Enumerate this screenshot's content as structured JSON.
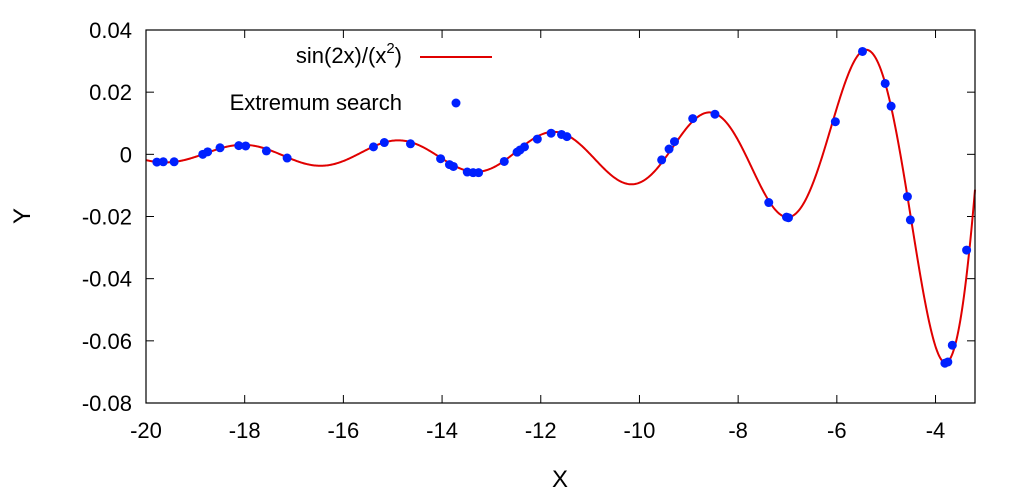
{
  "chart_data": {
    "type": "line",
    "title": "",
    "xlabel": "X",
    "ylabel": "Y",
    "xlim": [
      -20,
      -3.2
    ],
    "ylim": [
      -0.08,
      0.04
    ],
    "grid": false,
    "legend_position": "top-left",
    "x_ticks": [
      {
        "value": -20,
        "label": "-20"
      },
      {
        "value": -18,
        "label": "-18"
      },
      {
        "value": -16,
        "label": "-16"
      },
      {
        "value": -14,
        "label": "-14"
      },
      {
        "value": -12,
        "label": "-12"
      },
      {
        "value": -10,
        "label": "-10"
      },
      {
        "value": -8,
        "label": "-8"
      },
      {
        "value": -6,
        "label": "-6"
      },
      {
        "value": -4,
        "label": "-4"
      }
    ],
    "y_ticks": [
      {
        "value": 0.04,
        "label": "0.04"
      },
      {
        "value": 0.02,
        "label": "0.02"
      },
      {
        "value": 0,
        "label": "0"
      },
      {
        "value": -0.02,
        "label": "-0.02"
      },
      {
        "value": -0.04,
        "label": "-0.04"
      },
      {
        "value": -0.06,
        "label": "-0.06"
      },
      {
        "value": -0.08,
        "label": "-0.08"
      }
    ],
    "series": [
      {
        "name": "sin(2x)/(x",
        "name_superscript": "2",
        "name_suffix": ")",
        "kind": "line",
        "color": "#e00000",
        "function": "sin(2x)/(x^2)",
        "x_range": [
          -20,
          -3.2
        ]
      },
      {
        "name": "Extremum search",
        "kind": "scatter",
        "color": "#0020ff",
        "points": [
          [
            -19.78,
            -0.0025
          ],
          [
            -19.65,
            -0.0024
          ],
          [
            -19.43,
            -0.0024
          ],
          [
            -18.85,
            0.0
          ],
          [
            -18.75,
            0.0008
          ],
          [
            -18.5,
            0.0021
          ],
          [
            -18.12,
            0.0028
          ],
          [
            -17.98,
            0.0027
          ],
          [
            -17.56,
            0.0011
          ],
          [
            -17.14,
            -0.0012
          ],
          [
            -15.39,
            0.0024
          ],
          [
            -15.17,
            0.0038
          ],
          [
            -14.64,
            0.0034
          ],
          [
            -14.03,
            -0.0014
          ],
          [
            -13.85,
            -0.0033
          ],
          [
            -13.77,
            -0.0039
          ],
          [
            -13.49,
            -0.0057
          ],
          [
            -13.37,
            -0.0059
          ],
          [
            -13.26,
            -0.0059
          ],
          [
            -12.74,
            -0.0023
          ],
          [
            -12.48,
            0.0007
          ],
          [
            -12.42,
            0.0014
          ],
          [
            -12.33,
            0.0024
          ],
          [
            -12.07,
            0.0049
          ],
          [
            -11.79,
            0.0068
          ],
          [
            -11.58,
            0.0064
          ],
          [
            -11.47,
            0.0057
          ],
          [
            -9.55,
            -0.0018
          ],
          [
            -9.4,
            0.0017
          ],
          [
            -9.29,
            0.0041
          ],
          [
            -8.92,
            0.0115
          ],
          [
            -8.47,
            0.0129
          ],
          [
            -7.38,
            -0.0155
          ],
          [
            -7.02,
            -0.0202
          ],
          [
            -6.98,
            -0.0204
          ],
          [
            -6.03,
            0.0105
          ],
          [
            -5.48,
            0.0331
          ],
          [
            -5.02,
            0.0228
          ],
          [
            -4.9,
            0.0155
          ],
          [
            -4.57,
            -0.0136
          ],
          [
            -4.51,
            -0.0211
          ],
          [
            -3.81,
            -0.0672
          ],
          [
            -3.75,
            -0.0668
          ],
          [
            -3.66,
            -0.0614
          ],
          [
            -3.37,
            -0.0308
          ]
        ]
      }
    ]
  }
}
